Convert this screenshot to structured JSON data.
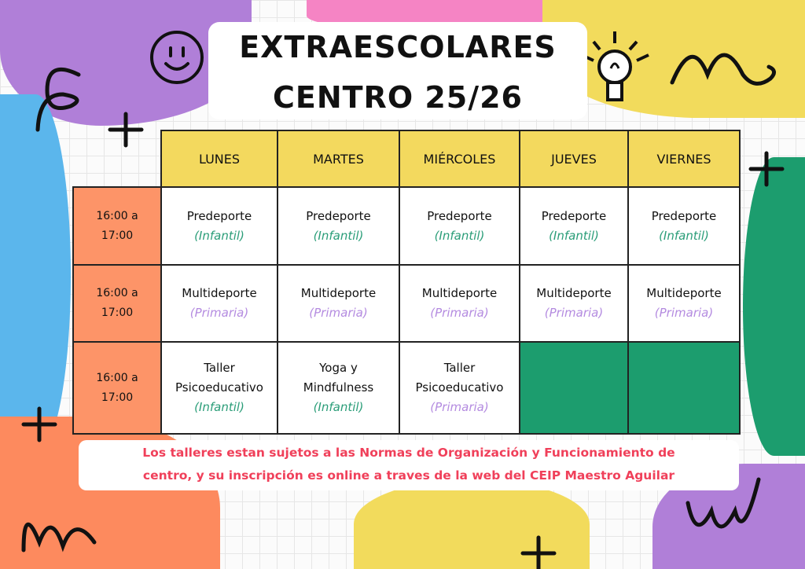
{
  "title": {
    "line1": "EXTRAESCOLARES",
    "line2": "CENTRO 25/26"
  },
  "schedule": {
    "days": [
      "LUNES",
      "MARTES",
      "MIÉRCOLES",
      "JUEVES",
      "VIERNES"
    ],
    "rows": [
      {
        "time": "16:00 a 17:00",
        "cells": [
          {
            "activity": "Predeporte",
            "group": "(Infantil)",
            "group_type": "infantil"
          },
          {
            "activity": "Predeporte",
            "group": "(Infantil)",
            "group_type": "infantil"
          },
          {
            "activity": "Predeporte",
            "group": "(Infantil)",
            "group_type": "infantil"
          },
          {
            "activity": "Predeporte",
            "group": "(Infantil)",
            "group_type": "infantil"
          },
          {
            "activity": "Predeporte",
            "group": "(Infantil)",
            "group_type": "infantil"
          }
        ]
      },
      {
        "time": "16:00 a 17:00",
        "cells": [
          {
            "activity": "Multideporte",
            "group": "(Primaria)",
            "group_type": "primaria"
          },
          {
            "activity": "Multideporte",
            "group": "(Primaria)",
            "group_type": "primaria"
          },
          {
            "activity": "Multideporte",
            "group": "(Primaria)",
            "group_type": "primaria"
          },
          {
            "activity": "Multideporte",
            "group": "(Primaria)",
            "group_type": "primaria"
          },
          {
            "activity": "Multideporte",
            "group": "(Primaria)",
            "group_type": "primaria"
          }
        ]
      },
      {
        "time": "16:00 a 17:00",
        "cells": [
          {
            "activity_l1": "Taller",
            "activity_l2": "Psicoeducativo",
            "group": "(Infantil)",
            "group_type": "infantil"
          },
          {
            "activity_l1": "Yoga y",
            "activity_l2": "Mindfulness",
            "group": "(Infantil)",
            "group_type": "infantil"
          },
          {
            "activity_l1": "Taller",
            "activity_l2": "Psicoeducativo",
            "group": "(Primaria)",
            "group_type": "primaria"
          },
          {
            "empty": true
          },
          {
            "empty": true
          }
        ]
      }
    ]
  },
  "note": {
    "line1": "Los talleres estan sujetos a las Normas de Organización y Funcionamiento de",
    "line2": "centro,  y su inscripción es online a traves de la web del CEIP Maestro Aguilar"
  },
  "colors": {
    "header": "#f3d95e",
    "time": "#fd9468",
    "infantil": "#2a9d78",
    "primaria": "#b48be0",
    "empty_cell": "#1c9d6e",
    "note_text": "#f0405a"
  },
  "icons": [
    "smiley-icon",
    "lightbulb-icon",
    "plus-icon",
    "squiggle-icon"
  ]
}
